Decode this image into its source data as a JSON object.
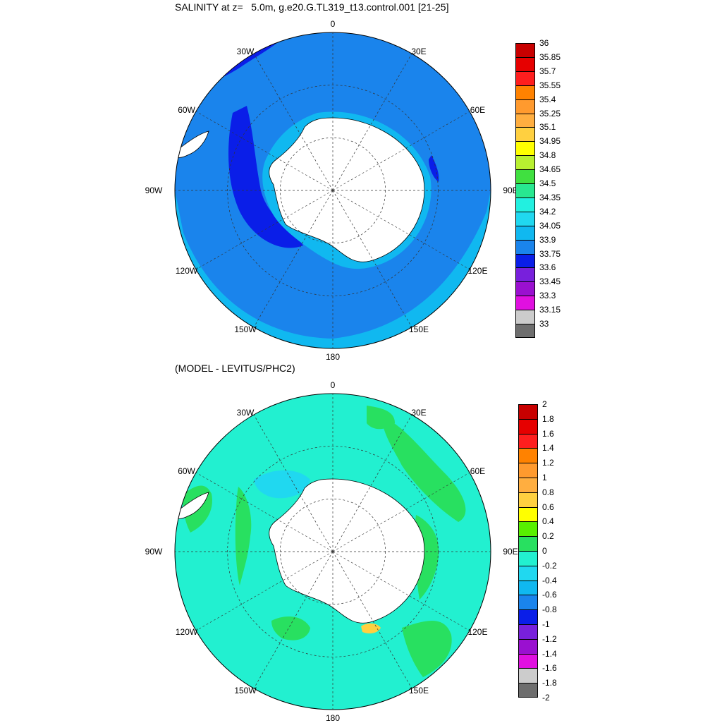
{
  "panels": [
    {
      "title": "SALINITY at z=   5.0m, g.e20.G.TL319_t13.control.001 [21-25]",
      "longitude_labels": [
        "0",
        "30E",
        "60E",
        "90E",
        "120E",
        "150E",
        "180",
        "150W",
        "120W",
        "90W",
        "60W",
        "30W"
      ],
      "colorbar": {
        "levels": [
          "36",
          "35.85",
          "35.7",
          "35.55",
          "35.4",
          "35.25",
          "35.1",
          "34.95",
          "34.8",
          "34.65",
          "34.5",
          "34.35",
          "34.2",
          "34.05",
          "33.9",
          "33.75",
          "33.6",
          "33.45",
          "33.3",
          "33.15",
          "33"
        ],
        "colors": [
          "#c80000",
          "#e60000",
          "#ff1e1e",
          "#ff8200",
          "#ff9a2e",
          "#ffae40",
          "#ffd040",
          "#ffff00",
          "#b8f030",
          "#40e040",
          "#28e890",
          "#22f0e0",
          "#20d8f0",
          "#10b8f0",
          "#1a84ec",
          "#0a1ee8",
          "#7820dc",
          "#9a10d0",
          "#e010e0",
          "#cccccc",
          "#6e6e6e"
        ]
      },
      "map": {
        "ocean_base": "#1a84ec",
        "outer_ring": "#10b8f0",
        "inner_ring": "#0a1ee8",
        "coastal": "#10b8f0",
        "land": "#ffffff"
      }
    },
    {
      "title": "(MODEL - LEVITUS/PHC2)",
      "longitude_labels": [
        "0",
        "30E",
        "60E",
        "90E",
        "120E",
        "150E",
        "180",
        "150W",
        "120W",
        "90W",
        "60W",
        "30W"
      ],
      "colorbar": {
        "levels": [
          "2",
          "1.8",
          "1.6",
          "1.4",
          "1.2",
          "1",
          "0.8",
          "0.6",
          "0.4",
          "0.2",
          "0",
          "-0.2",
          "-0.4",
          "-0.6",
          "-0.8",
          "-1",
          "-1.2",
          "-1.4",
          "-1.6",
          "-1.8",
          "-2"
        ],
        "colors": [
          "#c80000",
          "#e60000",
          "#ff1e1e",
          "#ff8200",
          "#ff9a2e",
          "#ffae40",
          "#ffd040",
          "#ffff00",
          "#58f000",
          "#28e060",
          "#22f0d0",
          "#20d8f0",
          "#10b8f0",
          "#1a84ec",
          "#0a1ee8",
          "#7820dc",
          "#9a10d0",
          "#e010e0",
          "#cccccc",
          "#6e6e6e"
        ]
      },
      "map": {
        "ocean_base": "#22f0d0",
        "patch_color": "#28e060",
        "fresh_patch": "#20d8f0",
        "warm_patch": "#ffd040",
        "land": "#ffffff"
      }
    }
  ]
}
